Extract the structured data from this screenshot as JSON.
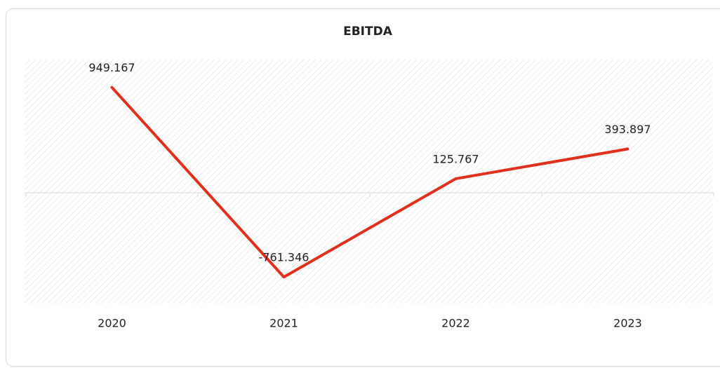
{
  "chart_data": {
    "type": "line",
    "title": "EBITDA",
    "categories": [
      "2020",
      "2021",
      "2022",
      "2023"
    ],
    "series": [
      {
        "name": "EBITDA",
        "color": "#e0301e",
        "values": [
          949.167,
          -761.346,
          125.767,
          393.897
        ]
      }
    ],
    "ylim": [
      -1000,
      1200
    ],
    "data_labels": true
  }
}
